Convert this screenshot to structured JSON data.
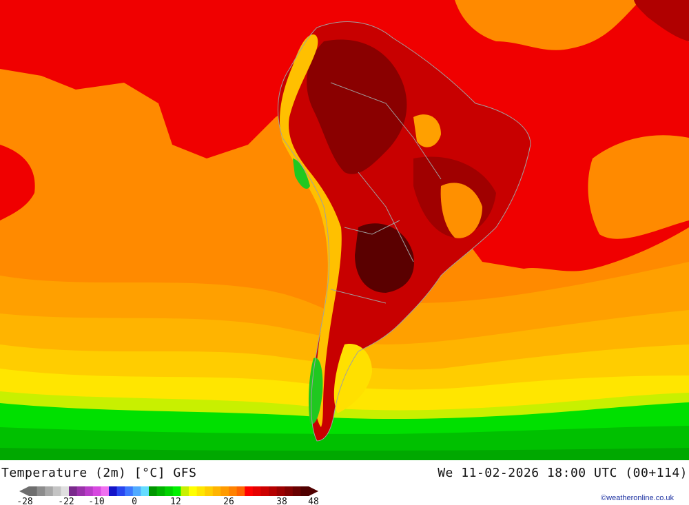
{
  "map": {
    "title": "Temperature (2m) [°C] GFS",
    "datetime": "We 11-02-2026 18:00 UTC (00+114)",
    "credit": "©weatheronline.co.uk",
    "colors": {
      "ocean_background": "#ff8000",
      "country_borders": "#a0a0a0"
    }
  },
  "legend": {
    "ticks": [
      "-28",
      "-22",
      "-10",
      "0",
      "12",
      "26",
      "38",
      "48"
    ],
    "colors": [
      "#6e6e6e",
      "#8c8c8c",
      "#a8a8a8",
      "#c4c4c4",
      "#e0e0e0",
      "#7a2a8c",
      "#9a32aa",
      "#b93cc8",
      "#d748e0",
      "#f070f0",
      "#1414c8",
      "#2846f0",
      "#3c78ff",
      "#50aaff",
      "#64dcff",
      "#009600",
      "#00b400",
      "#00d200",
      "#00f000",
      "#c8f000",
      "#ffff00",
      "#ffe600",
      "#ffcd00",
      "#ffb400",
      "#ff9b00",
      "#ff8200",
      "#ff6400",
      "#ff0000",
      "#e60000",
      "#cd0000",
      "#b40000",
      "#9b0000",
      "#820000",
      "#690000",
      "#500000"
    ]
  }
}
